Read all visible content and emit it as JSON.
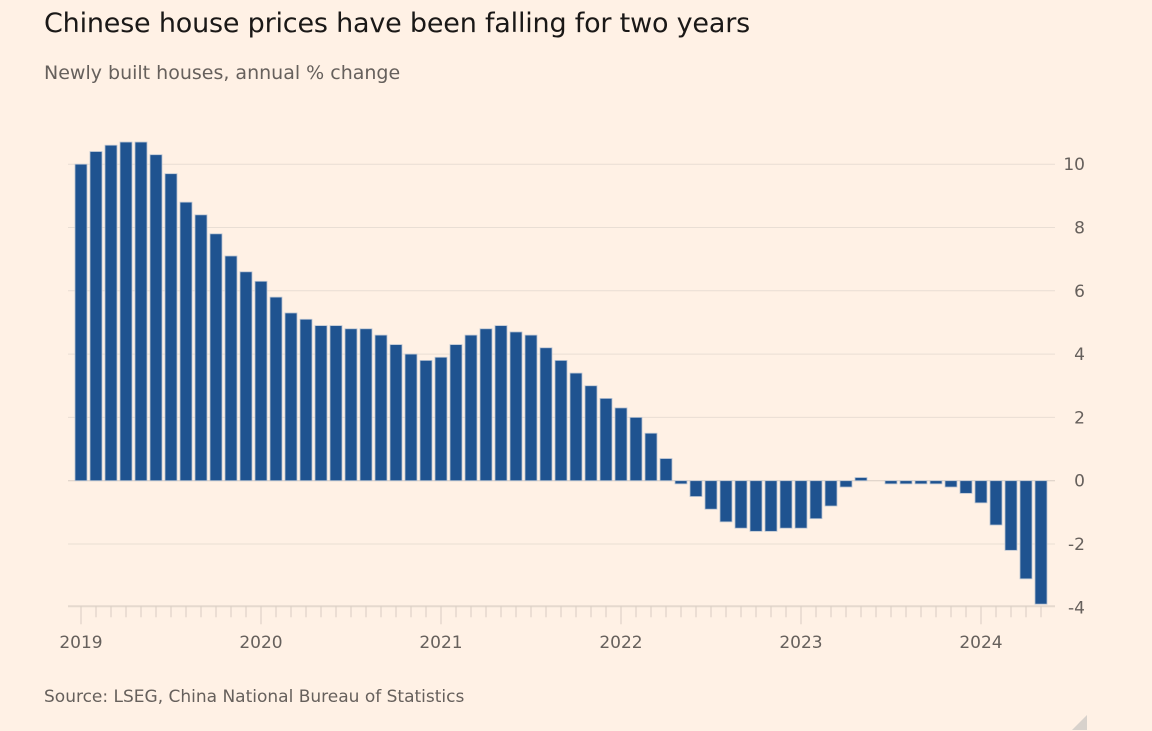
{
  "title": "Chinese house prices have been falling for two years",
  "subtitle": "Newly built houses, annual % change",
  "source": "Source: LSEG, China National Bureau of Statistics",
  "colors": {
    "background": "#fff1e5",
    "bar": "#1f5390",
    "text": "#66605c",
    "title": "#1a1817"
  },
  "chart_data": {
    "type": "bar",
    "title": "Chinese house prices have been falling for two years",
    "subtitle": "Newly built houses, annual % change",
    "xlabel": "",
    "ylabel": "Annual % change",
    "ylim": [
      -4,
      10.7
    ],
    "yticks": [
      10,
      8,
      6,
      4,
      2,
      0,
      -2,
      -4
    ],
    "ytick_labels": [
      "10",
      "8",
      "6",
      "4",
      "2",
      "0",
      "-2",
      "-4"
    ],
    "y_axis_side": "right",
    "grid": true,
    "xtick_labels": [
      "2019",
      "2020",
      "2021",
      "2022",
      "2023",
      "2024"
    ],
    "start": "2019-01",
    "end": "2024-05",
    "frequency": "monthly",
    "categories": [
      "2019-01",
      "2019-02",
      "2019-03",
      "2019-04",
      "2019-05",
      "2019-06",
      "2019-07",
      "2019-08",
      "2019-09",
      "2019-10",
      "2019-11",
      "2019-12",
      "2020-01",
      "2020-02",
      "2020-03",
      "2020-04",
      "2020-05",
      "2020-06",
      "2020-07",
      "2020-08",
      "2020-09",
      "2020-10",
      "2020-11",
      "2020-12",
      "2021-01",
      "2021-02",
      "2021-03",
      "2021-04",
      "2021-05",
      "2021-06",
      "2021-07",
      "2021-08",
      "2021-09",
      "2021-10",
      "2021-11",
      "2021-12",
      "2022-01",
      "2022-02",
      "2022-03",
      "2022-04",
      "2022-05",
      "2022-06",
      "2022-07",
      "2022-08",
      "2022-09",
      "2022-10",
      "2022-11",
      "2022-12",
      "2023-01",
      "2023-02",
      "2023-03",
      "2023-04",
      "2023-05",
      "2023-06",
      "2023-07",
      "2023-08",
      "2023-09",
      "2023-10",
      "2023-11",
      "2023-12",
      "2024-01",
      "2024-02",
      "2024-03",
      "2024-04",
      "2024-05"
    ],
    "values": [
      10.0,
      10.4,
      10.6,
      10.7,
      10.7,
      10.3,
      9.7,
      8.8,
      8.4,
      7.8,
      7.1,
      6.6,
      6.3,
      5.8,
      5.3,
      5.1,
      4.9,
      4.9,
      4.8,
      4.8,
      4.6,
      4.3,
      4.0,
      3.8,
      3.9,
      4.3,
      4.6,
      4.8,
      4.9,
      4.7,
      4.6,
      4.2,
      3.8,
      3.4,
      3.0,
      2.6,
      2.3,
      2.0,
      1.5,
      0.7,
      -0.1,
      -0.5,
      -0.9,
      -1.3,
      -1.5,
      -1.6,
      -1.6,
      -1.5,
      -1.5,
      -1.2,
      -0.8,
      -0.2,
      0.1,
      0.0,
      -0.1,
      -0.1,
      -0.1,
      -0.1,
      -0.2,
      -0.4,
      -0.7,
      -1.4,
      -2.2,
      -3.1,
      -3.9
    ]
  }
}
